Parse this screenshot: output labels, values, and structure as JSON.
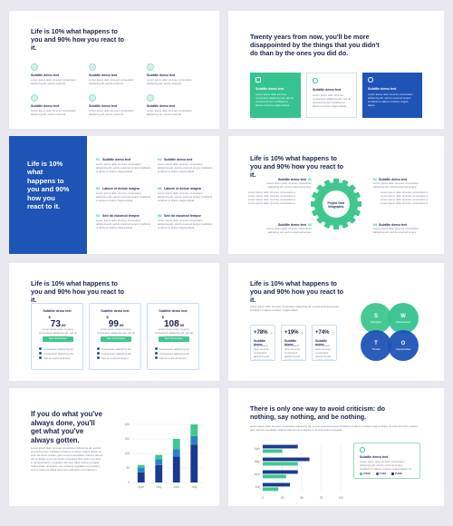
{
  "s1": {
    "title": "Life is 10% what happens to you and 90% how you react to it.",
    "items": [
      "Subtitle demo text",
      "Subtitle demo text",
      "Subtitle demo text",
      "Subtitle demo text",
      "Subtitle demo text",
      "Subtitle demo text"
    ],
    "lorem": "Lorem ipsum dolor sit amet, consectetur adipiscing elit, sed do eiusmod"
  },
  "s2": {
    "title": "Twenty years from now, you'll be more disappointed by the things that you didn't do than by the ones you did do.",
    "cards": [
      "Subtitle demo text",
      "Subtitle demo text",
      "Subtitle demo text"
    ],
    "lorem": "Lorem ipsum dolor sit amet, consectetur adipiscing elit, sed do eiusmod tempor incididunt ut labore et dolore magna aliqua."
  },
  "s3": {
    "title": "Life is 10% what happens to you and 90% how you react to it.",
    "items": [
      {
        "n": "01.",
        "t": "Subtitle demo text"
      },
      {
        "n": "02.",
        "t": "Labore et dolore magna"
      },
      {
        "n": "03.",
        "t": "Sed do eiusmod tempor"
      },
      {
        "n": "04.",
        "t": "Subtitle demo text"
      },
      {
        "n": "05.",
        "t": "Labore et dolore magna"
      },
      {
        "n": "06.",
        "t": "Sed do eiusmod tempor"
      }
    ],
    "lorem": "Lorem ipsum dolor sit amet, consectetur adipiscing elit, sed do eiusmod tempor incididunt ut labore et dolore magna aliqua."
  },
  "s4": {
    "title": "Life is 10% what happens to you and 90% how you react to it.",
    "gear": "Project Gear Infographic",
    "labels": [
      {
        "n": "01",
        "t": "Subtitle demo text"
      },
      {
        "n": "02",
        "t": "Subtitle demo text"
      },
      {
        "n": "03",
        "t": "Subtitle demo text"
      },
      {
        "n": "04",
        "t": "Subtitle demo text"
      }
    ],
    "lorem": "Lorem ipsum dolor sit amet, consectetur adipiscing elit, sed do eiusmod tempor."
  },
  "s5": {
    "title": "Life is 10% what happens to you and 90% how you react to it.",
    "cards": [
      {
        "h": "Subtitle demo text",
        "cur": "$",
        "p": "73",
        "c": ".99",
        "btn": "Start Subscription"
      },
      {
        "h": "Subtitle demo text",
        "cur": "$",
        "p": "99",
        "c": ".99",
        "btn": "Start Subscription"
      },
      {
        "h": "Subtitle demo text",
        "cur": "$",
        "p": "108",
        "c": ".99",
        "btn": "Start Subscription"
      }
    ],
    "features": [
      "Consectetur adipiscing elit",
      "Consectetur adipiscing elit",
      "Sed do eiusmod tempor"
    ],
    "lorem": "Lorem ipsum dolor sit amet, consectetur adipiscing elit, sed do eiusmod tempor"
  },
  "s6": {
    "title": "Life is 10% what happens to you and 90% how you react to it.",
    "stats": [
      {
        "v": "+78%",
        "t": "Subtitle demo"
      },
      {
        "v": "+19%",
        "t": "Subtitle demo"
      },
      {
        "v": "+74%",
        "t": "Subtitle demo"
      }
    ],
    "swot": [
      {
        "l": "S",
        "t": "Strengths"
      },
      {
        "l": "W",
        "t": "Weaknesses"
      },
      {
        "l": "T",
        "t": "Threats"
      },
      {
        "l": "O",
        "t": "Opportunities"
      }
    ],
    "lorem": "Lorem ipsum dolor sit amet, consectetur adipiscing elit, sed do eiusmod tempor incididunt ut labore et dolore magna aliqua."
  },
  "s7": {
    "title": "If you do what you've always done, you'll get what you've always gotten.",
    "lorem": "Lorem ipsum dolor sit amet, consectetur adipiscing elit, sed do eiusmod tempor incididunt ut labore et dolore magna aliqua. Ut enim ad minim veniam, quis nostrud exercitation ullamco laboris nisi ut aliquip ex ea commodo consequat. Duis aute irure dolor in reprehenderit in voluptate velit esse cillum dolore eu fugiat nulla pariatur. Excepteur sint occaecat cupidatat non proident, sunt in culpa qui officia deserunt mollit anim id est laborum."
  },
  "s8": {
    "title": "There is only one way to avoid criticism: do nothing, say nothing, and be nothing.",
    "box": "Subtitle demo text",
    "stats": [
      {
        "v": "2,500",
        "c": "#35c48f"
      },
      {
        "v": "1,100",
        "c": "#1f54b7"
      },
      {
        "v": "2,430",
        "c": "#1a2350"
      }
    ],
    "lorem": "Lorem ipsum dolor sit amet, consectetur adipiscing elit, sed do eiusmod tempor incididunt ut labore et dolore magna aliqua. Ut enim ad minim veniam, quis nostrud exercitation ullamco laboris nisi ut aliquip ex ea commodo consequat."
  },
  "chart_data": [
    {
      "type": "bar",
      "categories": [
        "April",
        "May",
        "June",
        "July"
      ],
      "ylim": [
        0,
        200
      ],
      "yticks": [
        "200",
        "150",
        "100",
        "50",
        "0"
      ],
      "series": [
        {
          "values": [
            35,
            60,
            90,
            130
          ],
          "color": "#1a3a8f"
        },
        {
          "values": [
            15,
            20,
            25,
            30
          ],
          "color": "#2b82c9"
        },
        {
          "values": [
            10,
            15,
            35,
            40
          ],
          "color": "#3fc78e"
        }
      ]
    },
    {
      "type": "bar",
      "orientation": "horizontal",
      "categories": [
        "April",
        "May",
        "June",
        "July"
      ],
      "xticks": [
        "0",
        "25",
        "50",
        "75",
        "100"
      ],
      "series": [
        {
          "values": [
            45,
            60,
            45,
            35
          ],
          "color": "#1a3a8f"
        },
        {
          "values": [
            25,
            45,
            30,
            20
          ],
          "color": "#3fc78e"
        }
      ]
    }
  ]
}
